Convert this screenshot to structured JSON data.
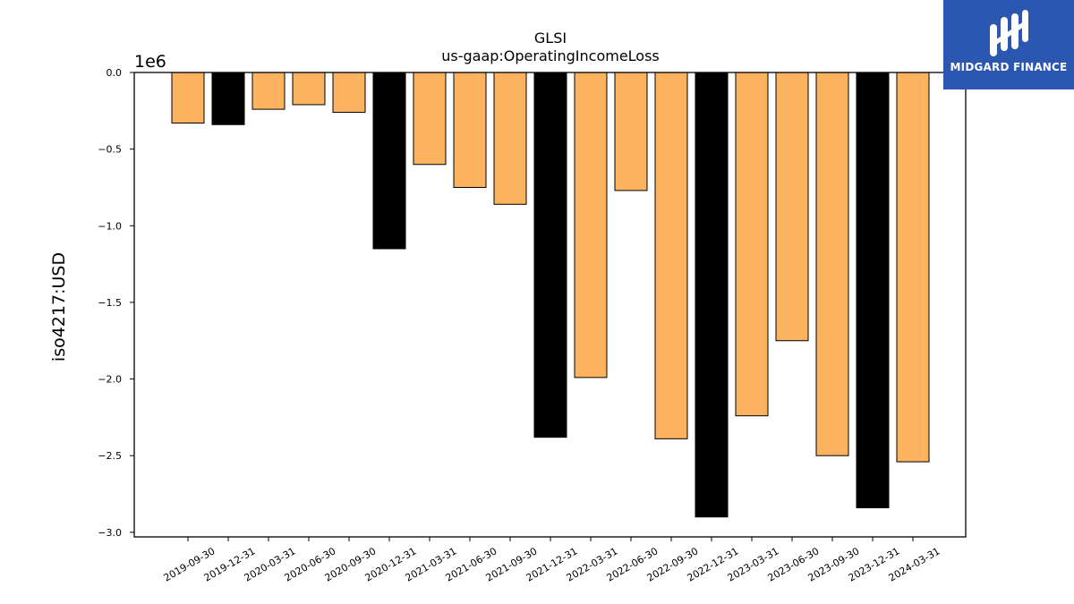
{
  "brand": {
    "name": "MIDGARD FINANCE",
    "logo_bg": "#2c57b0",
    "logo_icon": "midgard-logo-icon"
  },
  "chart_data": {
    "type": "bar",
    "title": "GLSI",
    "subtitle": "us-gaap:OperatingIncomeLoss",
    "xlabel": "",
    "ylabel": "iso4217:USD",
    "y_multiplier_label": "1e6",
    "ylim": [
      -3.03,
      0.0
    ],
    "yticks": [
      0.0,
      -0.5,
      -1.0,
      -1.5,
      -2.0,
      -2.5,
      -3.0
    ],
    "ytick_labels": [
      "0.0",
      "−0.5",
      "−1.0",
      "−1.5",
      "−2.0",
      "−2.5",
      "−3.0"
    ],
    "grid": false,
    "categories": [
      "2019-09-30",
      "2019-12-31",
      "2020-03-31",
      "2020-06-30",
      "2020-09-30",
      "2020-12-31",
      "2021-03-31",
      "2021-06-30",
      "2021-09-30",
      "2021-12-31",
      "2022-03-31",
      "2022-06-30",
      "2022-09-30",
      "2022-12-31",
      "2023-03-31",
      "2023-06-30",
      "2023-09-30",
      "2023-12-31",
      "2024-03-31"
    ],
    "values": [
      -0.33,
      -0.34,
      -0.24,
      -0.21,
      -0.26,
      -1.15,
      -0.6,
      -0.75,
      -0.86,
      -2.38,
      -1.99,
      -0.77,
      -2.39,
      -2.9,
      -2.24,
      -1.75,
      -2.5,
      -2.84,
      -2.54
    ],
    "bar_colors": [
      "#fbb360",
      "#000000",
      "#fbb360",
      "#fbb360",
      "#fbb360",
      "#000000",
      "#fbb360",
      "#fbb360",
      "#fbb360",
      "#000000",
      "#fbb360",
      "#fbb360",
      "#fbb360",
      "#000000",
      "#fbb360",
      "#fbb360",
      "#fbb360",
      "#000000",
      "#fbb360"
    ]
  }
}
